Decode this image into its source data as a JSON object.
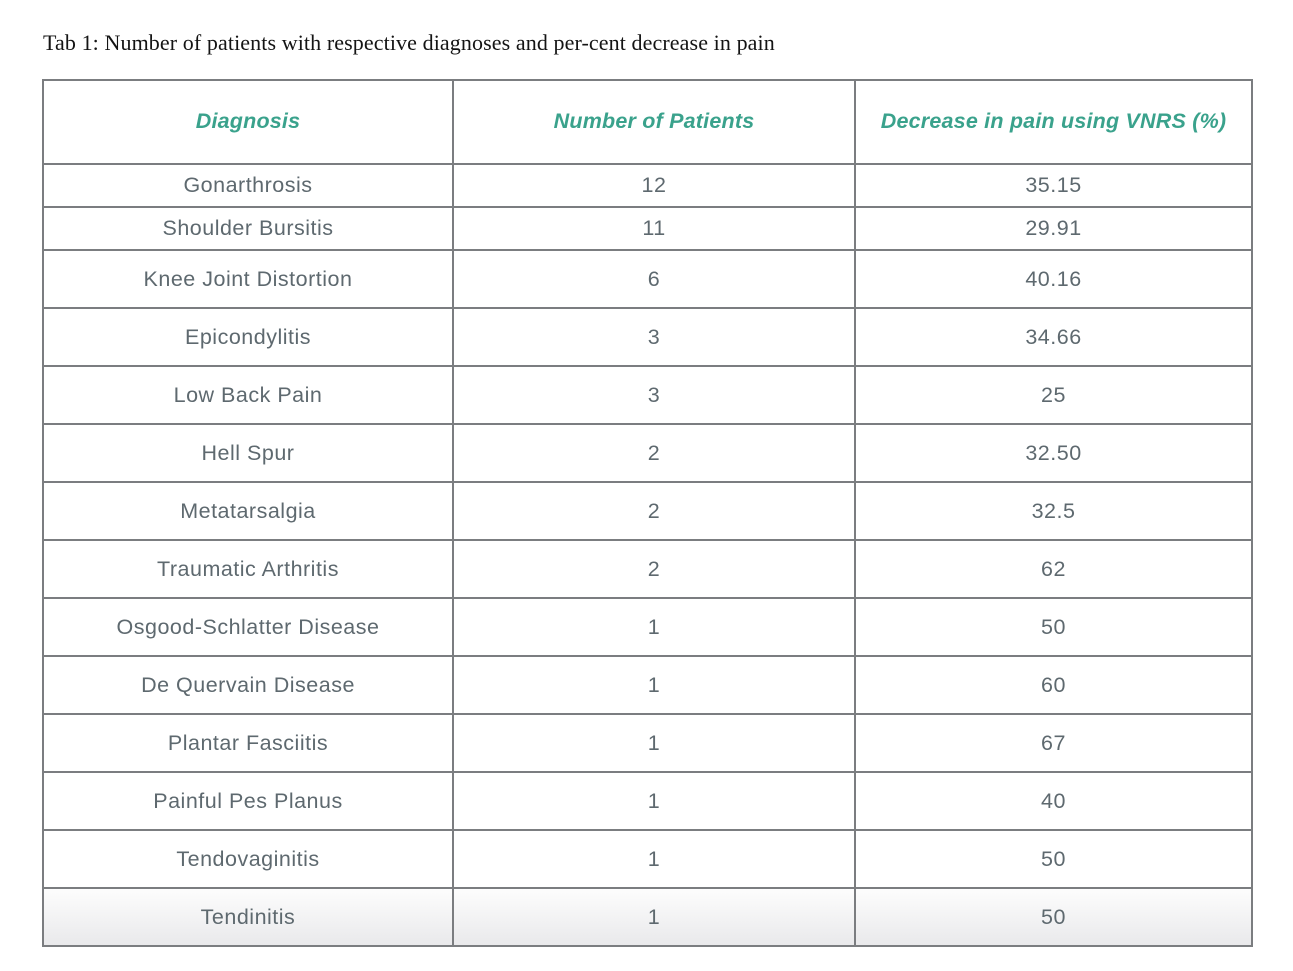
{
  "page": {
    "caption": "Tab 1: Number of patients with respective diagnoses and per-cent decrease in pain"
  },
  "colors": {
    "header_text": "#3AA28C",
    "body_text": "#5E696F",
    "border": "#7B7D80",
    "caption_text": "#141414"
  },
  "table": {
    "columns": [
      {
        "label": "Diagnosis"
      },
      {
        "label": "Number of Patients"
      },
      {
        "label": "Decrease in pain using VNRS (%)"
      }
    ],
    "rows": [
      [
        "Gonarthrosis",
        "12",
        "35.15"
      ],
      [
        "Shoulder Bursitis",
        "11",
        "29.91"
      ],
      [
        "Knee Joint Distortion",
        "6",
        "40.16"
      ],
      [
        "Epicondylitis",
        "3",
        "34.66"
      ],
      [
        "Low Back Pain",
        "3",
        "25"
      ],
      [
        "Hell Spur",
        "2",
        "32.50"
      ],
      [
        "Metatarsalgia",
        "2",
        "32.5"
      ],
      [
        "Traumatic Arthritis",
        "2",
        "62"
      ],
      [
        "Osgood-Schlatter Disease",
        "1",
        "50"
      ],
      [
        "De Quervain Disease",
        "1",
        "60"
      ],
      [
        "Plantar Fasciitis",
        "1",
        "67"
      ],
      [
        "Painful Pes Planus",
        "1",
        "40"
      ],
      [
        "Tendovaginitis",
        "1",
        "50"
      ],
      [
        "Tendinitis",
        "1",
        "50"
      ]
    ]
  }
}
